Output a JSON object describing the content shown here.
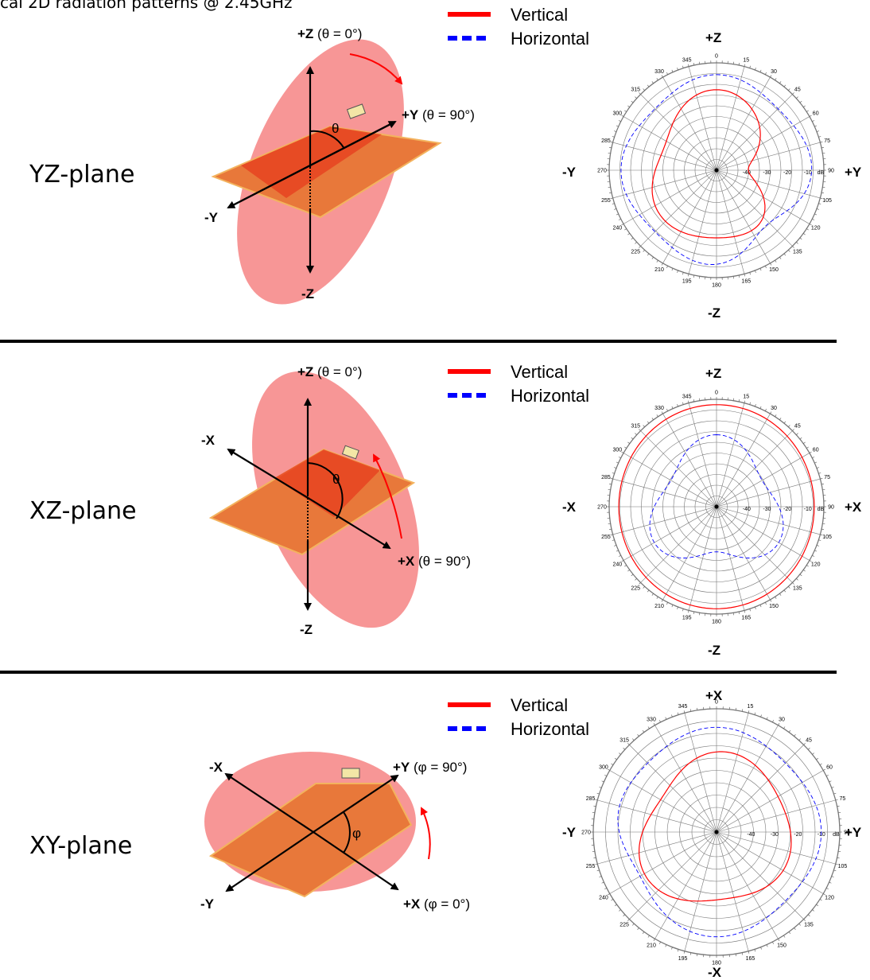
{
  "title": "cal 2D radiation patterns @ 2.45GHz",
  "legend": {
    "vertical": "Vertical",
    "horizontal": "Horizontal"
  },
  "colors": {
    "vertical": "#ff0000",
    "horizontal": "#0000ff",
    "pcb": "#e8783a",
    "ellipse": "#f46a6a",
    "arrow": "#ff0000"
  },
  "angle_ticks": [
    "0",
    "15",
    "30",
    "45",
    "60",
    "75",
    "90",
    "105",
    "120",
    "135",
    "150",
    "165",
    "180",
    "195",
    "210",
    "225",
    "240",
    "255",
    "270",
    "285",
    "300",
    "315",
    "330",
    "345"
  ],
  "db_ticks": [
    "-40",
    "-30",
    "-20",
    "-10",
    "dB"
  ],
  "sections": [
    {
      "plane": "YZ-plane",
      "axes3d": {
        "top": "+Z",
        "top_note": " (θ = 0°)",
        "right": "+Y",
        "right_note": " (θ = 90°)",
        "left": "-Y",
        "bottom": "-Z",
        "angle": "θ"
      },
      "polar": {
        "top": "+Z",
        "bottom": "-Z",
        "left": "-Y",
        "right": "+Y"
      }
    },
    {
      "plane": "XZ-plane",
      "axes3d": {
        "top": "+Z",
        "top_note": " (θ = 0°)",
        "right": "+X",
        "right_note": " (θ = 90°)",
        "left": "-X",
        "bottom": "-Z",
        "angle": "θ"
      },
      "polar": {
        "top": "+Z",
        "bottom": "-Z",
        "left": "-X",
        "right": "+X"
      }
    },
    {
      "plane": "XY-plane",
      "axes3d": {
        "top": "+Y",
        "top_note": " (φ = 90°)",
        "right": "+X",
        "right_note": " (φ = 0°)",
        "left": "-X",
        "bottom": "-Y",
        "angle": "φ"
      },
      "polar": {
        "top": "+X",
        "bottom": "-X",
        "left": "-Y",
        "right": "+Y"
      }
    }
  ]
}
